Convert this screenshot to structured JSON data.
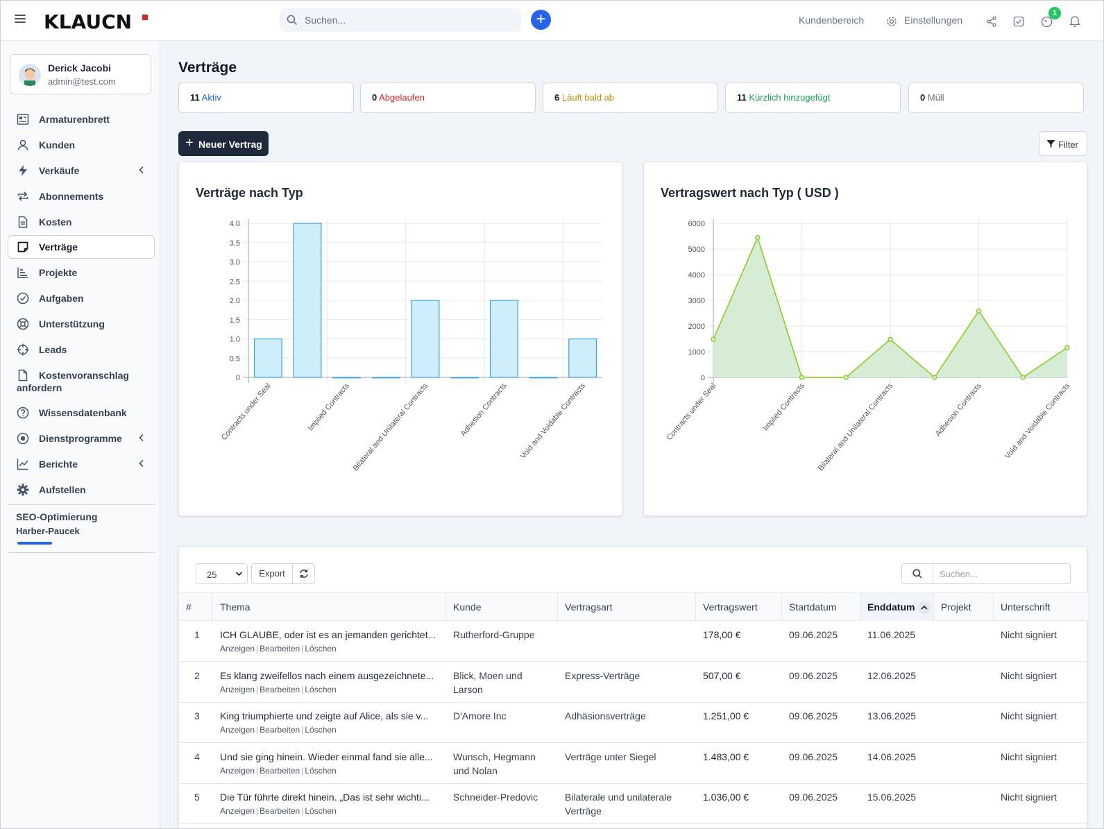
{
  "header": {
    "logo": "KLAUCN",
    "search_placeholder": "Suchen...",
    "plus": "+",
    "customer_area": "Kundenbereich",
    "settings": "Einstellungen",
    "notification_count": "1"
  },
  "user": {
    "name": "Derick Jacobi",
    "email": "admin@test.com"
  },
  "sidebar": {
    "items": [
      {
        "label": "Armaturenbrett",
        "icon": "dashboard-icon"
      },
      {
        "label": "Kunden",
        "icon": "user-icon"
      },
      {
        "label": "Verkäufe",
        "icon": "bolt-icon"
      },
      {
        "label": "Abonnements",
        "icon": "repeat-icon"
      },
      {
        "label": "Kosten",
        "icon": "document-icon"
      },
      {
        "label": "Verträge",
        "icon": "contract-icon"
      },
      {
        "label": "Projekte",
        "icon": "chart-bars-icon"
      },
      {
        "label": "Aufgaben",
        "icon": "check-circle-icon"
      },
      {
        "label": "Unterstützung",
        "icon": "lifebuoy-icon"
      },
      {
        "label": "Leads",
        "icon": "crosshair-icon"
      },
      {
        "label": "Kostenvoranschlag",
        "label2": "anfordern",
        "icon": "file-icon"
      },
      {
        "label": "Wissensdatenbank",
        "icon": "question-icon"
      },
      {
        "label": "Dienstprogramme",
        "icon": "dot-circle-icon"
      },
      {
        "label": "Berichte",
        "icon": "line-chart-icon"
      },
      {
        "label": "Aufstellen",
        "icon": "gear-icon"
      }
    ],
    "project": {
      "title": "SEO-Optimierung",
      "client": "Harber-Paucek"
    }
  },
  "page": {
    "title": "Verträge",
    "stats": [
      {
        "count": "11",
        "label": "Aktiv",
        "color": "#2563eb"
      },
      {
        "count": "0",
        "label": "Abgelaufen",
        "color": "#dc2626"
      },
      {
        "count": "6",
        "label": "Läuft bald ab",
        "color": "#ca8a04"
      },
      {
        "count": "11",
        "label": "Kürzlich hinzugefügt",
        "color": "#16a34a"
      },
      {
        "count": "0",
        "label": "Müll",
        "color": "#6b7280"
      }
    ],
    "new_button": "Neuer Vertrag",
    "filter_button": "Filter"
  },
  "chart_data": [
    {
      "type": "bar",
      "title": "Verträge nach Typ",
      "categories": [
        "Contracts under Seal",
        "",
        "Implied Contracts",
        "",
        "Bilateral and Unilateral Contracts",
        "",
        "Adhesion Contracts",
        "",
        "Void and Voidable Contracts"
      ],
      "values": [
        1,
        4,
        0,
        0,
        2,
        0,
        2,
        0,
        1
      ],
      "ylim": [
        0,
        4
      ],
      "yticks": [
        "0",
        "0.5",
        "1.0",
        "1.5",
        "2.0",
        "2.5",
        "3.0",
        "3.5",
        "4.0"
      ],
      "color": "#36a2eb",
      "fill": "#cfeefc"
    },
    {
      "type": "area",
      "title": "Vertragswert nach Typ ( USD )",
      "categories": [
        "Contracts under Seal",
        "",
        "Implied Contracts",
        "",
        "Bilateral and Unilateral Contracts",
        "",
        "Adhesion Contracts",
        "",
        "Void and Voidable Contracts"
      ],
      "values": [
        1483,
        5450,
        0,
        0,
        1480,
        0,
        2590,
        0,
        1160
      ],
      "ylim": [
        0,
        6000
      ],
      "yticks": [
        "0",
        "1000",
        "2000",
        "3000",
        "4000",
        "5000",
        "6000"
      ],
      "color": "#84cc16",
      "fill": "#d7ecd4"
    }
  ],
  "table": {
    "per_page": "25",
    "export": "Export",
    "search_placeholder": "Suchen...",
    "columns": [
      "#",
      "Thema",
      "Kunde",
      "Vertragsart",
      "Vertragswert",
      "Startdatum",
      "Enddatum",
      "Projekt",
      "Unterschrift"
    ],
    "actions": [
      "Anzeigen",
      "Bearbeiten",
      "Löschen"
    ],
    "rows": [
      {
        "id": "1",
        "subject": "ICH GLAUBE, oder ist es an jemanden gerichtet...",
        "customer": "Rutherford-Gruppe",
        "customer2": "",
        "type": "",
        "type2": "",
        "value": "178,00 €",
        "start": "09.06.2025",
        "end": "11.06.2025",
        "project": "",
        "signature": "Nicht signiert"
      },
      {
        "id": "2",
        "subject": "Es klang zweifellos nach einem ausgezeichnete...",
        "customer": "Blick, Moen und",
        "customer2": "Larson",
        "type": "Express-Verträge",
        "type2": "",
        "value": "507,00 €",
        "start": "09.06.2025",
        "end": "12.06.2025",
        "project": "",
        "signature": "Nicht signiert"
      },
      {
        "id": "3",
        "subject": "King triumphierte und zeigte auf Alice, als sie v...",
        "customer": "D'Amore Inc",
        "customer2": "",
        "type": "Adhäsionsverträge",
        "type2": "",
        "value": "1.251,00 €",
        "start": "09.06.2025",
        "end": "13.06.2025",
        "project": "",
        "signature": "Nicht signiert"
      },
      {
        "id": "4",
        "subject": "Und sie ging hinein. Wieder einmal fand sie alle...",
        "customer": "Wunsch, Hegmann",
        "customer2": "und Nolan",
        "type": "Verträge unter Siegel",
        "type2": "",
        "value": "1.483,00 €",
        "start": "09.06.2025",
        "end": "14.06.2025",
        "project": "",
        "signature": "Nicht signiert"
      },
      {
        "id": "5",
        "subject": "Die Tür führte direkt hinein. „Das ist sehr wichti...",
        "customer": "Schneider-Predovic",
        "customer2": "",
        "type": "Bilaterale und unilaterale",
        "type2": "Verträge",
        "value": "1.036,00 €",
        "start": "09.06.2025",
        "end": "15.06.2025",
        "project": "",
        "signature": "Nicht signiert"
      }
    ]
  }
}
